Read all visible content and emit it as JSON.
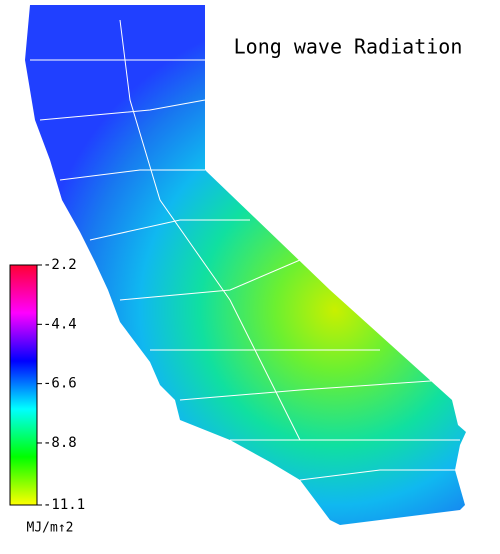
{
  "title": "Long wave Radiation",
  "colorbar": {
    "lim": [
      -11.1,
      -2.2
    ],
    "ticks": [
      -2.2,
      -4.4,
      -6.6,
      -8.8,
      -11.1
    ],
    "label": "MJ/m↑2",
    "colors": [
      "#ff0033",
      "#ff00ff",
      "#0000ff",
      "#00ffff",
      "#00ff00",
      "#ffff00"
    ]
  }
}
